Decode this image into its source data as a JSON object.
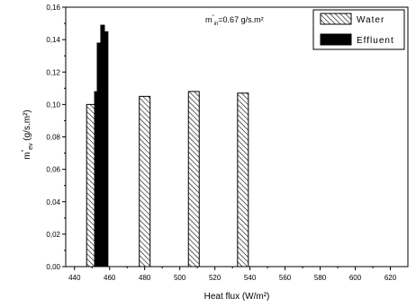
{
  "chart_data": {
    "type": "bar",
    "xlabel": "Heat flux (W/m²)",
    "ylabel": "m″ev (g/s.m²)",
    "ylabel_parts": {
      "base": "m",
      "mark": "″",
      "sub": "ev",
      "rest": " (g/s.m²)"
    },
    "annotation": {
      "base": "m",
      "mark": "″",
      "sub": "in",
      "rest": "=0.67  g/s.m²"
    },
    "xlim": [
      435,
      630
    ],
    "ylim": [
      0,
      0.16
    ],
    "xticks": [
      "440",
      "460",
      "480",
      "500",
      "520",
      "540",
      "560",
      "580",
      "600",
      "620"
    ],
    "yticks": [
      "0,00",
      "0,02",
      "0,04",
      "0,06",
      "0,08",
      "0,10",
      "0,12",
      "0,14",
      "0,16"
    ],
    "legend_position": "top-right",
    "series": [
      {
        "name": "Water",
        "style": "hatched",
        "points": [
          {
            "x": 450,
            "y": 0.1
          },
          {
            "x": 480,
            "y": 0.105
          },
          {
            "x": 508,
            "y": 0.108
          },
          {
            "x": 536,
            "y": 0.107
          }
        ]
      },
      {
        "name": "Effluent",
        "style": "solid",
        "color": "#000000",
        "points": [
          {
            "x": 452.5,
            "y": 0.108
          },
          {
            "x": 454,
            "y": 0.138
          },
          {
            "x": 456,
            "y": 0.149
          },
          {
            "x": 458,
            "y": 0.145
          }
        ]
      }
    ]
  }
}
